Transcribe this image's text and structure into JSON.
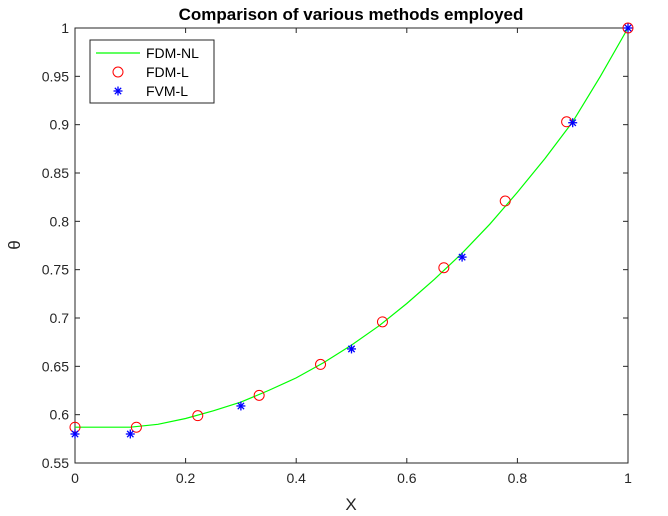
{
  "chart_data": {
    "type": "line",
    "title": "Comparison of various methods employed",
    "xlabel": "X",
    "ylabel": "θ",
    "xlim": [
      0,
      1
    ],
    "ylim": [
      0.55,
      1
    ],
    "xticks": [
      "0",
      "0.2",
      "0.4",
      "0.6",
      "0.8",
      "1"
    ],
    "yticks": [
      "0.55",
      "0.6",
      "0.65",
      "0.7",
      "0.75",
      "0.8",
      "0.85",
      "0.9",
      "0.95",
      "1"
    ],
    "legend_position": "top-left",
    "grid": false,
    "series": [
      {
        "name": "FDM-NL",
        "style": "line",
        "color": "#00ff00",
        "x": [
          0,
          0.05,
          0.1,
          0.15,
          0.2,
          0.25,
          0.3,
          0.35,
          0.4,
          0.45,
          0.5,
          0.55,
          0.6,
          0.65,
          0.7,
          0.75,
          0.8,
          0.85,
          0.9,
          0.95,
          1
        ],
        "y": [
          0.587,
          0.587,
          0.587,
          0.59,
          0.596,
          0.604,
          0.613,
          0.625,
          0.638,
          0.654,
          0.672,
          0.692,
          0.715,
          0.74,
          0.767,
          0.797,
          0.83,
          0.865,
          0.903,
          0.95,
          1.0
        ]
      },
      {
        "name": "FDM-L",
        "style": "circle",
        "color": "#ff0000",
        "x": [
          0,
          0.111,
          0.222,
          0.333,
          0.444,
          0.556,
          0.667,
          0.778,
          0.889,
          1
        ],
        "y": [
          0.587,
          0.587,
          0.599,
          0.62,
          0.652,
          0.696,
          0.752,
          0.821,
          0.903,
          1.0
        ]
      },
      {
        "name": "FVM-L",
        "style": "star",
        "color": "#0000ff",
        "x": [
          0,
          0.1,
          0.3,
          0.5,
          0.7,
          0.9,
          1
        ],
        "y": [
          0.58,
          0.58,
          0.609,
          0.668,
          0.763,
          0.902,
          1.0
        ]
      }
    ]
  }
}
